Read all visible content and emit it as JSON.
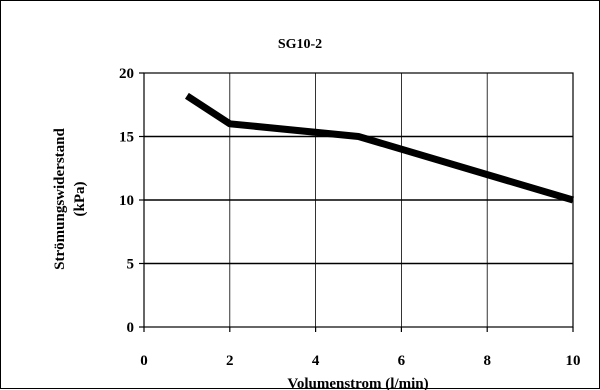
{
  "chart_data": {
    "type": "line",
    "title": "SG10-2",
    "xlabel": "Volumenstrom (l/min)",
    "ylabel_line1": "Strömungswiderstand",
    "ylabel_line2": "(kPa)",
    "xlim": [
      0,
      10
    ],
    "ylim": [
      0,
      20
    ],
    "x_ticks": [
      0,
      2,
      4,
      6,
      8,
      10
    ],
    "y_ticks": [
      0,
      5,
      10,
      15,
      20
    ],
    "grid": {
      "horizontal": true,
      "vertical": true
    },
    "legend": "none",
    "series": [
      {
        "x": [
          1,
          2,
          5,
          10
        ],
        "y": [
          18.2,
          16.0,
          15.0,
          10.0
        ],
        "color": "#000000"
      }
    ]
  }
}
